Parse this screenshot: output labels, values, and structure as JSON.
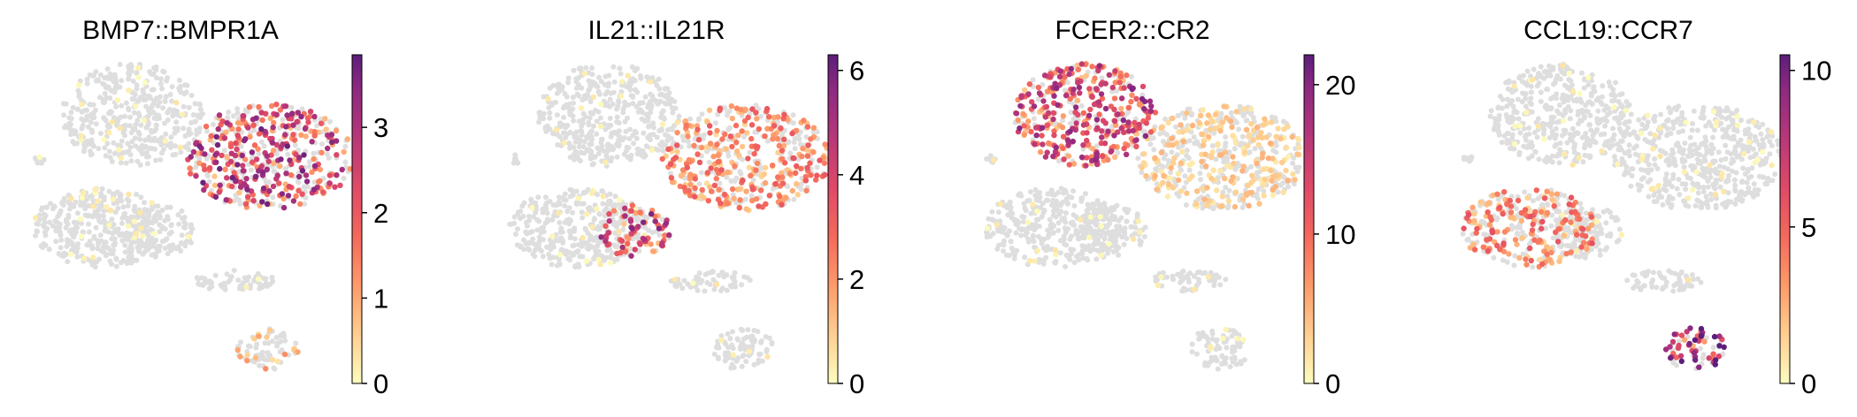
{
  "figure": {
    "panels": [
      {
        "title": "BMP7::BMPR1A",
        "colorbar_ticks": [
          "0",
          "1",
          "2",
          "3"
        ]
      },
      {
        "title": "IL21::IL21R",
        "colorbar_ticks": [
          "0",
          "2",
          "4",
          "6"
        ]
      },
      {
        "title": "FCER2::CR2",
        "colorbar_ticks": [
          "0",
          "10",
          "20"
        ]
      },
      {
        "title": "CCL19::CCR7",
        "colorbar_ticks": [
          "0",
          "5",
          "10"
        ]
      }
    ]
  },
  "chart_data": [
    {
      "type": "scatter",
      "title": "BMP7::BMPR1A",
      "colormap": "magma_r",
      "background_color": "#dedede",
      "grid": false,
      "colorbar": {
        "range": [
          0,
          3.85
        ],
        "ticks": [
          0,
          1,
          2,
          3
        ]
      },
      "high_expression_clusters": [
        {
          "cluster": "upper-right",
          "level": 2.2,
          "density": 0.6
        },
        {
          "cluster": "lower-pair",
          "level": 0.8,
          "density": 0.25
        }
      ]
    },
    {
      "type": "scatter",
      "title": "IL21::IL21R",
      "colormap": "magma_r",
      "background_color": "#dedede",
      "grid": false,
      "colorbar": {
        "range": [
          0,
          6.3
        ],
        "ticks": [
          0,
          2,
          4,
          6
        ]
      },
      "high_expression_clusters": [
        {
          "cluster": "upper-right",
          "level": 2.0,
          "density": 0.55
        },
        {
          "cluster": "mid-left",
          "level": 3.5,
          "density": 0.7
        }
      ]
    },
    {
      "type": "scatter",
      "title": "FCER2::CR2",
      "colormap": "magma_r",
      "background_color": "#dedede",
      "grid": false,
      "colorbar": {
        "range": [
          0,
          22
        ],
        "ticks": [
          0,
          10,
          20
        ]
      },
      "high_expression_clusters": [
        {
          "cluster": "upper-left",
          "level": 12,
          "density": 0.75
        },
        {
          "cluster": "upper-right",
          "level": 3,
          "density": 0.45
        }
      ]
    },
    {
      "type": "scatter",
      "title": "CCL19::CCR7",
      "colormap": "magma_r",
      "background_color": "#dedede",
      "grid": false,
      "colorbar": {
        "range": [
          0,
          10.5
        ],
        "ticks": [
          0,
          5,
          10
        ]
      },
      "high_expression_clusters": [
        {
          "cluster": "left",
          "level": 3.5,
          "density": 0.45
        },
        {
          "cluster": "lower-pair",
          "level": 7,
          "density": 0.6
        }
      ]
    }
  ]
}
